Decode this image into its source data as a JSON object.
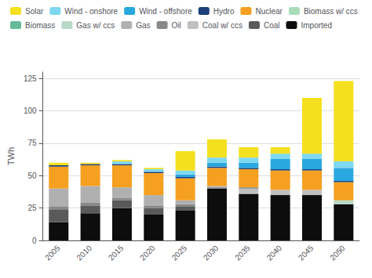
{
  "chart_data": {
    "type": "bar",
    "stacked": true,
    "ylabel": "TWh",
    "categories": [
      "2005",
      "2010",
      "2015",
      "2020",
      "2025",
      "2030",
      "2035",
      "2040",
      "2045",
      "2050"
    ],
    "series": [
      {
        "name": "Imported",
        "color": "#0d0d0d",
        "values": [
          14,
          21,
          25,
          20,
          23,
          40,
          36,
          35,
          35,
          28
        ]
      },
      {
        "name": "Coal",
        "color": "#5a5a5a",
        "values": [
          10,
          6,
          6,
          5,
          3,
          0,
          0,
          0,
          0,
          0
        ]
      },
      {
        "name": "Coal w/ ccs",
        "color": "#c0c0c0",
        "values": [
          0,
          0,
          0,
          0,
          0,
          0,
          4,
          4,
          4,
          0
        ]
      },
      {
        "name": "Oil",
        "color": "#888888",
        "values": [
          2,
          2,
          2,
          2,
          2,
          1,
          1,
          0,
          0,
          0
        ]
      },
      {
        "name": "Gas",
        "color": "#b0b0b0",
        "values": [
          14,
          13,
          8,
          8,
          3,
          1,
          0,
          0,
          0,
          0
        ]
      },
      {
        "name": "Gas w/ ccs",
        "color": "#b8d8c8",
        "values": [
          0,
          0,
          0,
          0,
          0,
          0,
          0,
          0,
          0,
          3
        ]
      },
      {
        "name": "Biomass",
        "color": "#66bb99",
        "values": [
          0,
          0,
          0,
          0,
          0,
          0,
          0,
          0,
          0,
          0
        ]
      },
      {
        "name": "Biomass w/ ccs",
        "color": "#aaddbb",
        "values": [
          0,
          0,
          0,
          0,
          0,
          0,
          0,
          0,
          0,
          0
        ]
      },
      {
        "name": "Nuclear",
        "color": "#f5a020",
        "values": [
          17,
          16,
          17,
          17,
          17,
          14,
          14,
          15,
          15,
          14
        ]
      },
      {
        "name": "Hydro",
        "color": "#1a3f7a",
        "values": [
          1,
          1,
          1,
          1,
          1,
          1,
          1,
          1,
          1,
          1
        ]
      },
      {
        "name": "Wind - offshore",
        "color": "#29a8e0",
        "values": [
          0,
          0,
          0,
          0,
          2,
          3,
          4,
          8,
          8,
          10
        ]
      },
      {
        "name": "Wind - onshore",
        "color": "#7dd8f0",
        "values": [
          0,
          0,
          2,
          2,
          3,
          4,
          4,
          4,
          4,
          5
        ]
      },
      {
        "name": "Solar",
        "color": "#f5e020",
        "values": [
          2,
          1,
          1,
          1,
          15,
          14,
          8,
          5,
          43,
          62
        ]
      }
    ],
    "ylim": [
      0,
      130
    ],
    "yticks": [
      0,
      25,
      50,
      75,
      100,
      125
    ],
    "grid": true,
    "legend": "upper left"
  }
}
